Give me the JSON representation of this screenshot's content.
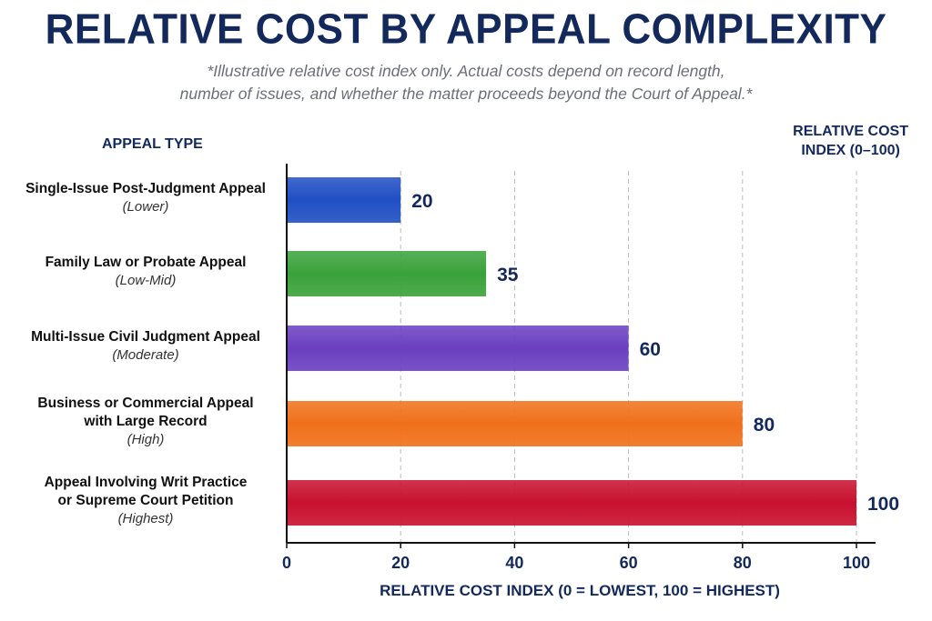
{
  "title": "RELATIVE COST BY APPEAL COMPLEXITY",
  "subtitle_lines": [
    "*Illustrative relative cost index only. Actual costs depend on record length,",
    "number of issues, and whether the matter proceeds beyond the Court of Appeal.*"
  ],
  "y_header": "APPEAL TYPE",
  "index_header_lines": [
    "RELATIVE COST",
    "INDEX (0–100)"
  ],
  "chart_data": {
    "type": "bar",
    "orientation": "horizontal",
    "title": "RELATIVE COST BY APPEAL COMPLEXITY",
    "xlabel": "RELATIVE COST INDEX (0 = LOWEST, 100 = HIGHEST)",
    "ylabel": "APPEAL TYPE",
    "xlim": [
      0,
      100
    ],
    "x_ticks": [
      0,
      20,
      40,
      60,
      80,
      100
    ],
    "grid": "vertical dashed",
    "categories": [
      {
        "lines": [
          "Single-Issue Post-Judgment Appeal"
        ],
        "level": "(Lower)",
        "value": 20,
        "color": "#1f4fc4"
      },
      {
        "lines": [
          "Family Law or Probate Appeal"
        ],
        "level": "(Low-Mid)",
        "value": 35,
        "color": "#3aa23a"
      },
      {
        "lines": [
          "Multi-Issue Civil Judgment Appeal"
        ],
        "level": "(Moderate)",
        "value": 60,
        "color": "#6a3fc0"
      },
      {
        "lines": [
          "Business or Commercial Appeal",
          "with Large Record"
        ],
        "level": "(High)",
        "value": 80,
        "color": "#f0701a"
      },
      {
        "lines": [
          "Appeal Involving Writ Practice",
          "or Supreme Court Petition"
        ],
        "level": "(Highest)",
        "value": 100,
        "color": "#c8102e"
      }
    ]
  }
}
